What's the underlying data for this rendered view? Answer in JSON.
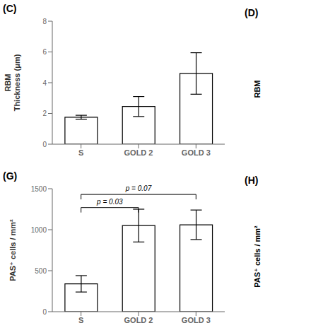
{
  "chart_data": [
    {
      "type": "bar",
      "title": "(C)",
      "categories": [
        "S",
        "GOLD 2",
        "GOLD 3"
      ],
      "values": [
        1.75,
        2.45,
        4.6
      ],
      "errors": [
        0.13,
        0.65,
        1.35
      ],
      "ylabel": "RBM\nThickness (μm)",
      "ylim": [
        0,
        8
      ],
      "yticks": [
        0,
        2,
        4,
        6,
        8
      ],
      "color": "white",
      "grid": false,
      "annotations": [
        {
          "text": "(D)"
        },
        {
          "text": "RBM"
        }
      ],
      "brackets": []
    },
    {
      "type": "bar",
      "title": "(G)",
      "categories": [
        "S",
        "GOLD 2",
        "GOLD 3"
      ],
      "values": [
        340,
        1050,
        1060
      ],
      "errors": [
        100,
        200,
        180
      ],
      "ylabel": "PAS⁺ cells / mm²",
      "ylim": [
        0,
        1500
      ],
      "yticks": [
        0,
        500,
        1000,
        1500
      ],
      "color": "white",
      "grid": false,
      "annotations": [
        {
          "text": "(H)"
        },
        {
          "text": "PAS⁺ cells / mm²"
        }
      ],
      "brackets": [
        {
          "from": "S",
          "to": "GOLD 2",
          "y": 1270,
          "label": "p = 0.03"
        },
        {
          "from": "S",
          "to": "GOLD 3",
          "y": 1430,
          "label": "p = 0.07"
        }
      ]
    }
  ]
}
